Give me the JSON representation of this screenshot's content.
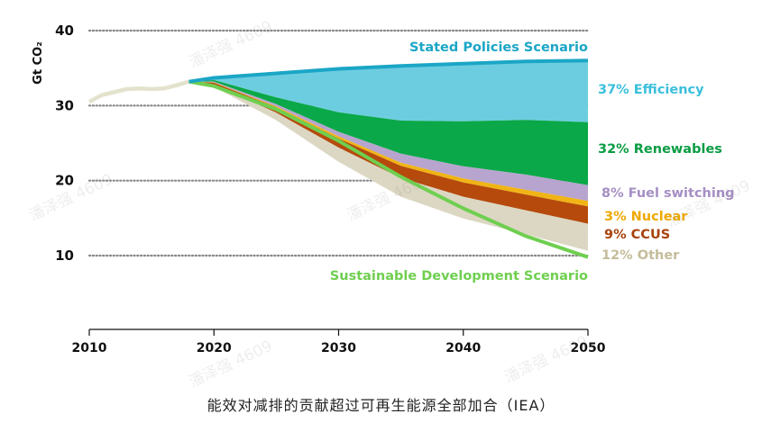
{
  "chart_data": {
    "type": "area",
    "ylabel": "Gt CO₂",
    "ylim": [
      0,
      40
    ],
    "yticks": [
      10,
      20,
      30,
      40
    ],
    "xlim": [
      2010,
      2050
    ],
    "xticks": [
      2010,
      2020,
      2030,
      2040,
      2050
    ],
    "x": [
      2018,
      2020,
      2025,
      2030,
      2035,
      2040,
      2045,
      2050
    ],
    "historical": {
      "x": [
        2010,
        2011,
        2012,
        2013,
        2014,
        2015,
        2016,
        2017,
        2018
      ],
      "values": [
        30.5,
        31.4,
        31.8,
        32.2,
        32.3,
        32.2,
        32.3,
        32.7,
        33.2
      ],
      "color": "#e3e3cd"
    },
    "stated_policies": {
      "label": "Stated Policies Scenario",
      "values": [
        33.2,
        33.7,
        34.3,
        34.9,
        35.3,
        35.6,
        35.9,
        36.0
      ],
      "color": "#1ba6c6"
    },
    "sustainable_development": {
      "label": "Sustainable Development Scenario",
      "values": [
        33.2,
        32.6,
        29.5,
        25.3,
        20.5,
        16.3,
        12.6,
        9.8
      ],
      "color": "#6fcf50"
    },
    "series": [
      {
        "name": "Efficiency",
        "label": "37% Efficiency",
        "color": "#6dcde0",
        "label_color": "#3bbfdc",
        "values": [
          0,
          0.3,
          3.2,
          5.8,
          7.3,
          7.7,
          7.8,
          8.2
        ]
      },
      {
        "name": "Renewables",
        "label": "32% Renewables",
        "color": "#0aa848",
        "label_color": "#0a9c43",
        "values": [
          0,
          0.2,
          0.9,
          2.6,
          4.4,
          6.0,
          7.3,
          8.4
        ]
      },
      {
        "name": "Fuel switching",
        "label": "8% Fuel switching",
        "color": "#b7a4cf",
        "label_color": "#a58fc4",
        "values": [
          0,
          0.1,
          0.3,
          0.6,
          1.2,
          1.6,
          2.0,
          2.1
        ]
      },
      {
        "name": "Nuclear",
        "label": "3% Nuclear",
        "color": "#f0b416",
        "label_color": "#efa800",
        "values": [
          0,
          0.05,
          0.15,
          0.3,
          0.45,
          0.55,
          0.65,
          0.75
        ]
      },
      {
        "name": "CCUS",
        "label": "9% CCUS",
        "color": "#b54a0c",
        "label_color": "#a8420c",
        "values": [
          0,
          0.2,
          0.7,
          1.2,
          1.6,
          1.9,
          2.1,
          2.3
        ]
      },
      {
        "name": "Other",
        "label": "12% Other",
        "color": "#dcd7c3",
        "label_color": "#c5bc9a",
        "values": [
          0,
          0.35,
          1.0,
          1.9,
          2.5,
          2.9,
          3.2,
          3.6
        ]
      }
    ],
    "caption": "能效对减排的贡献超过可再生能源全部加合（IEA）"
  },
  "watermark": "潘泽强 4609"
}
